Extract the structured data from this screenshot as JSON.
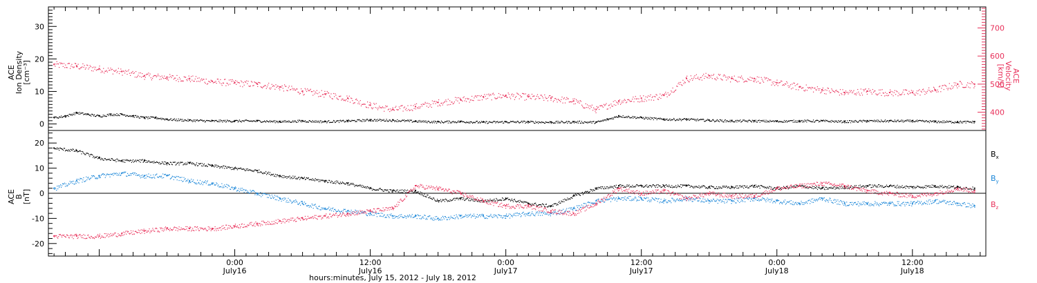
{
  "colors": {
    "black": "#000000",
    "pink": "#e8305a",
    "blue": "#1a86d8"
  },
  "chart_data": [
    {
      "type": "scatter",
      "panel": "top",
      "left_axis": {
        "label_lines": [
          "ACE",
          "Ion Density",
          "[cm⁻³]"
        ],
        "ticks": [
          0,
          10,
          20,
          30
        ],
        "ylim": [
          -2,
          36
        ]
      },
      "right_axis": {
        "label_lines": [
          "ACE",
          "Velocity",
          "[km/s]"
        ],
        "ticks": [
          400,
          500,
          600,
          700
        ],
        "ylim": [
          335,
          775
        ]
      },
      "x_unit": "hours since July 15, 2012 00:00",
      "xlim": [
        7.5,
        90.5
      ],
      "series": [
        {
          "axis": "left",
          "color": "black",
          "x": [
            8,
            9,
            10,
            11,
            12,
            13,
            14,
            15,
            16,
            17,
            18,
            20,
            22,
            24,
            26,
            28,
            30,
            32,
            34,
            36,
            38,
            40,
            42,
            44,
            46,
            48,
            50,
            52,
            54,
            56,
            57,
            58,
            60,
            62,
            64,
            66,
            68,
            70,
            72,
            74,
            76,
            78,
            80,
            82,
            84,
            86,
            88,
            89.5
          ],
          "y": [
            2,
            2.5,
            3.5,
            3,
            2.5,
            3,
            3,
            2.5,
            2,
            2,
            1.5,
            1.2,
            1,
            1,
            1,
            0.8,
            1,
            0.8,
            1,
            1.3,
            1.2,
            0.9,
            0.7,
            0.8,
            0.6,
            0.7,
            0.7,
            0.6,
            0.7,
            0.6,
            1.5,
            2.5,
            2,
            1.5,
            1.5,
            1.2,
            1,
            1,
            0.9,
            1,
            1,
            0.8,
            1,
            1,
            1,
            0.8,
            0.7,
            0.7
          ]
        },
        {
          "axis": "right",
          "color": "pink",
          "x": [
            8,
            10,
            12,
            14,
            16,
            18,
            20,
            22,
            24,
            26,
            28,
            30,
            32,
            34,
            36,
            38,
            40,
            42,
            44,
            46,
            48,
            50,
            52,
            54,
            56,
            58,
            60,
            62,
            64,
            66,
            68,
            70,
            72,
            74,
            76,
            78,
            80,
            82,
            84,
            86,
            88,
            89.5
          ],
          "y": [
            570,
            565,
            555,
            545,
            530,
            525,
            520,
            510,
            505,
            500,
            490,
            475,
            465,
            450,
            425,
            410,
            420,
            435,
            445,
            455,
            460,
            455,
            450,
            440,
            410,
            440,
            450,
            460,
            520,
            530,
            520,
            520,
            505,
            490,
            480,
            470,
            475,
            470,
            470,
            480,
            500,
            500
          ]
        }
      ]
    },
    {
      "type": "scatter",
      "panel": "bottom",
      "y_axis": {
        "label_lines": [
          "ACE",
          "B",
          "[nT]"
        ],
        "ticks": [
          -20,
          -10,
          0,
          10,
          20
        ],
        "ylim": [
          -25,
          25
        ]
      },
      "x_unit": "hours since July 15, 2012 00:00",
      "xlim": [
        7.5,
        90.5
      ],
      "series": [
        {
          "name": "Bx",
          "color": "black",
          "x": [
            8,
            10,
            12,
            14,
            16,
            18,
            20,
            22,
            24,
            26,
            28,
            30,
            32,
            34,
            36,
            38,
            40,
            42,
            44,
            46,
            48,
            50,
            52,
            54,
            56,
            58,
            60,
            62,
            64,
            66,
            68,
            70,
            72,
            74,
            76,
            78,
            80,
            82,
            84,
            86,
            88,
            89.5
          ],
          "y": [
            18,
            17,
            14,
            13,
            13,
            12,
            12,
            11,
            10,
            9,
            7,
            6,
            5,
            4,
            2,
            1,
            1,
            -3,
            -2,
            -3,
            -2,
            -4,
            -5,
            -1,
            2,
            3,
            3,
            3,
            3,
            2.5,
            2.5,
            3,
            2,
            3,
            2,
            2.5,
            3,
            3,
            2.5,
            3,
            2.5,
            2
          ]
        },
        {
          "name": "By",
          "color": "blue",
          "x": [
            8,
            10,
            12,
            14,
            16,
            18,
            20,
            22,
            24,
            26,
            28,
            30,
            32,
            34,
            36,
            38,
            40,
            42,
            44,
            46,
            48,
            50,
            52,
            54,
            56,
            58,
            60,
            62,
            64,
            66,
            68,
            70,
            72,
            74,
            76,
            78,
            80,
            82,
            84,
            86,
            88,
            89.5
          ],
          "y": [
            2,
            5,
            7,
            8,
            7,
            7,
            5,
            4,
            2,
            0,
            -2,
            -4,
            -6,
            -7,
            -8,
            -9,
            -9,
            -10,
            -9,
            -9,
            -9,
            -8,
            -8,
            -6,
            -3,
            -2,
            -2,
            -3,
            -2,
            -3,
            -3,
            -2,
            -3,
            -4,
            -2,
            -4,
            -4,
            -4,
            -4,
            -3,
            -4,
            -5
          ]
        },
        {
          "name": "Bz",
          "color": "pink",
          "x": [
            8,
            10,
            12,
            14,
            16,
            18,
            20,
            22,
            24,
            26,
            28,
            30,
            32,
            34,
            36,
            38,
            40,
            42,
            44,
            46,
            48,
            50,
            52,
            54,
            56,
            58,
            60,
            62,
            64,
            66,
            68,
            70,
            72,
            74,
            76,
            78,
            80,
            82,
            84,
            86,
            88,
            89.5
          ],
          "y": [
            -17,
            -17,
            -17,
            -16,
            -15,
            -14,
            -14,
            -14,
            -13,
            -12,
            -11,
            -10,
            -9,
            -8,
            -7,
            -6,
            3,
            2,
            0,
            -3,
            -5,
            -5,
            -7,
            -8,
            -4,
            2,
            0,
            1,
            -2,
            0,
            -1,
            -1,
            2,
            3,
            4,
            3,
            1,
            0,
            -1,
            0,
            2,
            1
          ]
        }
      ]
    }
  ],
  "series_labels": {
    "bx": "B",
    "bx_sub": "x",
    "by": "B",
    "by_sub": "y",
    "bz": "B",
    "bz_sub": "z"
  },
  "x_ticks": [
    {
      "hours": 24,
      "time": "0:00",
      "date": "July16"
    },
    {
      "hours": 36,
      "time": "12:00",
      "date": "July16"
    },
    {
      "hours": 48,
      "time": "0:00",
      "date": "July17"
    },
    {
      "hours": 60,
      "time": "12:00",
      "date": "July17"
    },
    {
      "hours": 72,
      "time": "0:00",
      "date": "July18"
    },
    {
      "hours": 84,
      "time": "12:00",
      "date": "July18"
    }
  ],
  "x_label": "hours:minutes, July 15, 2012 - July 18, 2012"
}
